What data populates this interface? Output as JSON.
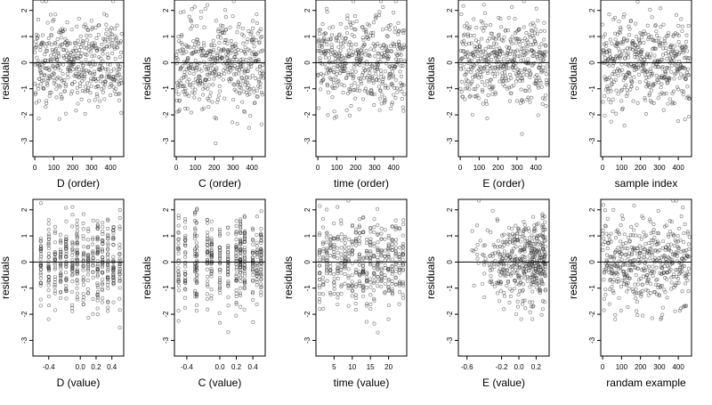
{
  "chart_data": [
    {
      "type": "scatter",
      "xlabel": "D (order)",
      "ylabel": "residuals",
      "xticks": [
        0,
        100,
        200,
        300,
        400
      ],
      "xlim": [
        -10,
        470
      ],
      "yticks": [
        -3,
        -2,
        -1,
        0,
        1,
        2
      ],
      "ylim": [
        -3.6,
        2.4
      ],
      "reference_line_y": 0,
      "grid": false,
      "seed": 11,
      "n_points": 460,
      "pattern": "index"
    },
    {
      "type": "scatter",
      "xlabel": "C (order)",
      "ylabel": "residuals",
      "xticks": [
        0,
        100,
        200,
        300,
        400
      ],
      "xlim": [
        -10,
        470
      ],
      "yticks": [
        -3,
        -2,
        -1,
        0,
        1,
        2
      ],
      "ylim": [
        -3.6,
        2.4
      ],
      "reference_line_y": 0,
      "grid": false,
      "seed": 23,
      "n_points": 460,
      "pattern": "index"
    },
    {
      "type": "scatter",
      "xlabel": "time (order)",
      "ylabel": "residuals",
      "xticks": [
        0,
        100,
        200,
        300,
        400
      ],
      "xlim": [
        -10,
        470
      ],
      "yticks": [
        -3,
        -2,
        -1,
        0,
        1,
        2
      ],
      "ylim": [
        -3.6,
        2.4
      ],
      "reference_line_y": 0,
      "grid": false,
      "seed": 37,
      "n_points": 460,
      "pattern": "index"
    },
    {
      "type": "scatter",
      "xlabel": "E (order)",
      "ylabel": "residuals",
      "xticks": [
        0,
        100,
        200,
        300,
        400
      ],
      "xlim": [
        -10,
        470
      ],
      "yticks": [
        -3,
        -2,
        -1,
        0,
        1,
        2
      ],
      "ylim": [
        -3.6,
        2.4
      ],
      "reference_line_y": 0,
      "grid": false,
      "seed": 41,
      "n_points": 460,
      "pattern": "index"
    },
    {
      "type": "scatter",
      "xlabel": "sample index",
      "ylabel": "residuals",
      "xticks": [
        0,
        100,
        200,
        300,
        400
      ],
      "xlim": [
        -10,
        470
      ],
      "yticks": [
        -3,
        -2,
        -1,
        0,
        1,
        2
      ],
      "ylim": [
        -3.6,
        2.4
      ],
      "reference_line_y": 0,
      "grid": false,
      "seed": 53,
      "n_points": 460,
      "pattern": "index"
    },
    {
      "type": "scatter",
      "xlabel": "D (value)",
      "ylabel": "residuals",
      "xticks": [
        -0.4,
        0.0,
        0.2,
        0.4
      ],
      "xtick_labels": [
        "-0.4",
        "0.0",
        "0.2",
        "0.4"
      ],
      "xlim": [
        -0.6,
        0.55
      ],
      "yticks": [
        -3,
        -2,
        -1,
        0,
        1,
        2
      ],
      "ylim": [
        -3.6,
        2.4
      ],
      "reference_line_y": 0,
      "grid": false,
      "seed": 61,
      "n_points": 460,
      "pattern": "columns",
      "x_columns": [
        -0.5,
        -0.4,
        -0.32,
        -0.25,
        -0.18,
        -0.1,
        -0.04,
        0.04,
        0.1,
        0.16,
        0.22,
        0.28,
        0.35,
        0.42,
        0.5
      ]
    },
    {
      "type": "scatter",
      "xlabel": "C (value)",
      "ylabel": "residuals",
      "xticks": [
        -0.4,
        0.0,
        0.2,
        0.4
      ],
      "xtick_labels": [
        "-0.4",
        "0.0",
        "0.2",
        "0.4"
      ],
      "xlim": [
        -0.55,
        0.55
      ],
      "yticks": [
        -3,
        -2,
        -1,
        0,
        1,
        2
      ],
      "ylim": [
        -3.6,
        2.4
      ],
      "reference_line_y": 0,
      "grid": false,
      "seed": 71,
      "n_points": 460,
      "pattern": "columns",
      "x_columns": [
        -0.5,
        -0.42,
        -0.3,
        -0.28,
        -0.15,
        -0.1,
        0.0,
        0.1,
        0.2,
        0.25,
        0.3,
        0.4,
        0.45,
        0.5
      ]
    },
    {
      "type": "scatter",
      "xlabel": "time (value)",
      "ylabel": "residuals",
      "xticks": [
        5,
        10,
        15,
        20
      ],
      "xlim": [
        0,
        25
      ],
      "yticks": [
        -3,
        -2,
        -1,
        0,
        1,
        2
      ],
      "ylim": [
        -3.6,
        2.4
      ],
      "reference_line_y": 0,
      "grid": false,
      "seed": 83,
      "n_points": 460,
      "pattern": "columns",
      "x_columns": [
        1,
        2,
        3,
        4,
        5,
        6,
        7,
        8,
        9,
        10,
        11,
        12,
        13,
        14,
        15,
        16,
        17,
        18,
        19,
        20,
        21,
        22,
        23,
        24
      ]
    },
    {
      "type": "scatter",
      "xlabel": "E (value)",
      "ylabel": "residuals",
      "xticks": [
        -0.6,
        -0.2,
        0.0,
        0.2
      ],
      "xtick_labels": [
        "-0.6",
        "-0.2",
        "0.0",
        "0.2"
      ],
      "xlim": [
        -0.7,
        0.35
      ],
      "yticks": [
        -3,
        -2,
        -1,
        0,
        1,
        2
      ],
      "ylim": [
        -3.6,
        2.4
      ],
      "reference_line_y": 0,
      "grid": false,
      "seed": 97,
      "n_points": 460,
      "pattern": "skewed"
    },
    {
      "type": "scatter",
      "xlabel": "randam example",
      "ylabel": "residuals",
      "xticks": [
        0,
        100,
        200,
        300,
        400
      ],
      "xlim": [
        -10,
        470
      ],
      "yticks": [
        -3,
        -2,
        -1,
        0,
        1,
        2
      ],
      "ylim": [
        -3.6,
        2.4
      ],
      "reference_line_y": 0,
      "grid": false,
      "seed": 101,
      "n_points": 460,
      "pattern": "index"
    }
  ]
}
